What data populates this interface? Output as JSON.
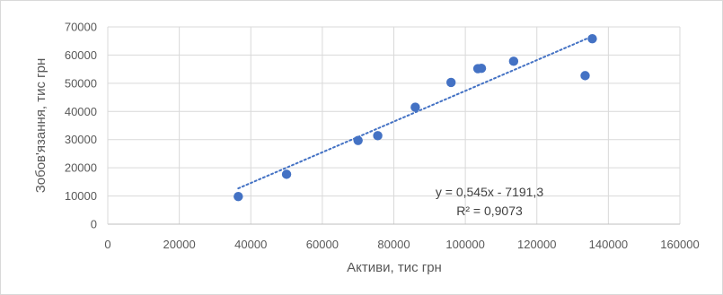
{
  "chart_data": {
    "type": "scatter",
    "title": "",
    "xlabel": "Активи, тис грн",
    "ylabel": "Зобов'язання, тис грн",
    "xlim": [
      0,
      160000
    ],
    "ylim": [
      0,
      70000
    ],
    "x_ticks": [
      0,
      20000,
      40000,
      60000,
      80000,
      100000,
      120000,
      140000,
      160000
    ],
    "y_ticks": [
      0,
      10000,
      20000,
      30000,
      40000,
      50000,
      60000,
      70000
    ],
    "grid": true,
    "legend": "none",
    "colors": {
      "marker": "#4472c4",
      "trendline": "#4472c4",
      "grid": "#d9d9d9",
      "axis": "#bfbfbf"
    },
    "series": [
      {
        "points": [
          {
            "x": 36500,
            "y": 9800
          },
          {
            "x": 50000,
            "y": 17700
          },
          {
            "x": 70000,
            "y": 29700
          },
          {
            "x": 75500,
            "y": 31400
          },
          {
            "x": 86000,
            "y": 41500
          },
          {
            "x": 96000,
            "y": 50300
          },
          {
            "x": 103500,
            "y": 55200
          },
          {
            "x": 104500,
            "y": 55300
          },
          {
            "x": 113500,
            "y": 57800
          },
          {
            "x": 133500,
            "y": 52700
          },
          {
            "x": 135500,
            "y": 65800
          }
        ]
      }
    ],
    "trendline": {
      "type": "linear",
      "slope": 0.545,
      "intercept": -7191.3,
      "x_range": [
        36500,
        135500
      ],
      "equation": "y = 0,545x - 7191,3",
      "r_squared": "R² = 0,9073"
    }
  }
}
